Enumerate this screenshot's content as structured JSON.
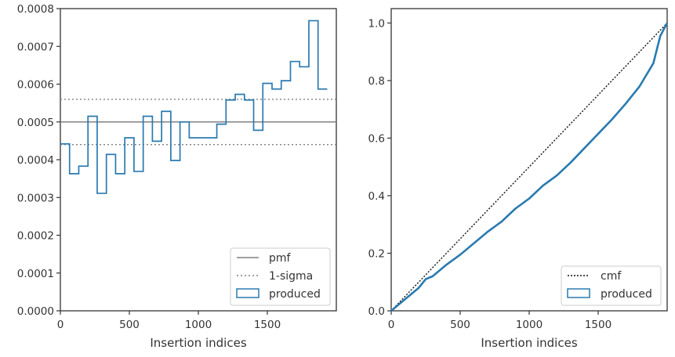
{
  "colors": {
    "produced": "#2a7ab0",
    "reference": "#808080",
    "cmf": "#111111",
    "axes": "#333333"
  },
  "chart_data": [
    {
      "type": "line",
      "xlabel": "Insertion indices",
      "ylabel": "",
      "xlim": [
        0,
        2000
      ],
      "ylim": [
        0,
        0.0008
      ],
      "xticks": [
        0,
        500,
        1000,
        1500
      ],
      "xtick_labels": [
        "0",
        "500",
        "1000",
        "1500"
      ],
      "yticks": [
        0,
        0.0001,
        0.0002,
        0.0003,
        0.0004,
        0.0005,
        0.0006,
        0.0007,
        0.0008
      ],
      "ytick_labels": [
        "0.0000",
        "0.0001",
        "0.0002",
        "0.0003",
        "0.0004",
        "0.0005",
        "0.0006",
        "0.0007",
        "0.0008"
      ],
      "grid": false,
      "legend_position": "bottom-right",
      "reference_lines": [
        {
          "name": "pmf",
          "y": 0.0005,
          "style": "solid"
        },
        {
          "name": "1-sigma",
          "y": 0.00056,
          "style": "dotted"
        },
        {
          "name": "1-sigma",
          "y": 0.00044,
          "style": "dotted"
        }
      ],
      "series": [
        {
          "name": "produced",
          "kind": "step-histogram",
          "bin_width": 66.7,
          "values": [
            0.000442,
            0.000363,
            0.000383,
            0.000515,
            0.000311,
            0.000414,
            0.000363,
            0.000458,
            0.000369,
            0.000515,
            0.000449,
            0.000528,
            0.000398,
            0.0005,
            0.000458,
            0.000458,
            0.000458,
            0.000494,
            0.000558,
            0.000573,
            0.000558,
            0.000478,
            0.000602,
            0.000587,
            0.000609,
            0.00066,
            0.000646,
            0.000768,
            0.000587
          ]
        }
      ],
      "legend": [
        "pmf",
        "1-sigma",
        "produced"
      ]
    },
    {
      "type": "line",
      "xlabel": "Insertion indices",
      "ylabel": "",
      "xlim": [
        0,
        2000
      ],
      "ylim": [
        0,
        1.05
      ],
      "xticks": [
        0,
        500,
        1000,
        1500
      ],
      "xtick_labels": [
        "0",
        "500",
        "1000",
        "1500"
      ],
      "yticks": [
        0,
        0.2,
        0.4,
        0.6,
        0.8,
        1.0
      ],
      "ytick_labels": [
        "0.0",
        "0.2",
        "0.4",
        "0.6",
        "0.8",
        "1.0"
      ],
      "grid": false,
      "legend_position": "bottom-right",
      "series": [
        {
          "name": "cmf",
          "style": "dotted",
          "x": [
            0,
            2000
          ],
          "y": [
            0,
            1.0
          ]
        },
        {
          "name": "produced",
          "style": "step",
          "x": [
            0,
            100,
            200,
            250,
            300,
            400,
            500,
            600,
            700,
            800,
            900,
            1000,
            1100,
            1200,
            1300,
            1400,
            1500,
            1600,
            1700,
            1800,
            1900,
            1950,
            2000
          ],
          "y": [
            0,
            0.04,
            0.08,
            0.11,
            0.12,
            0.16,
            0.195,
            0.235,
            0.275,
            0.31,
            0.355,
            0.39,
            0.435,
            0.47,
            0.515,
            0.565,
            0.615,
            0.665,
            0.72,
            0.78,
            0.86,
            0.955,
            1.0
          ]
        }
      ],
      "legend": [
        "cmf",
        "produced"
      ]
    }
  ]
}
